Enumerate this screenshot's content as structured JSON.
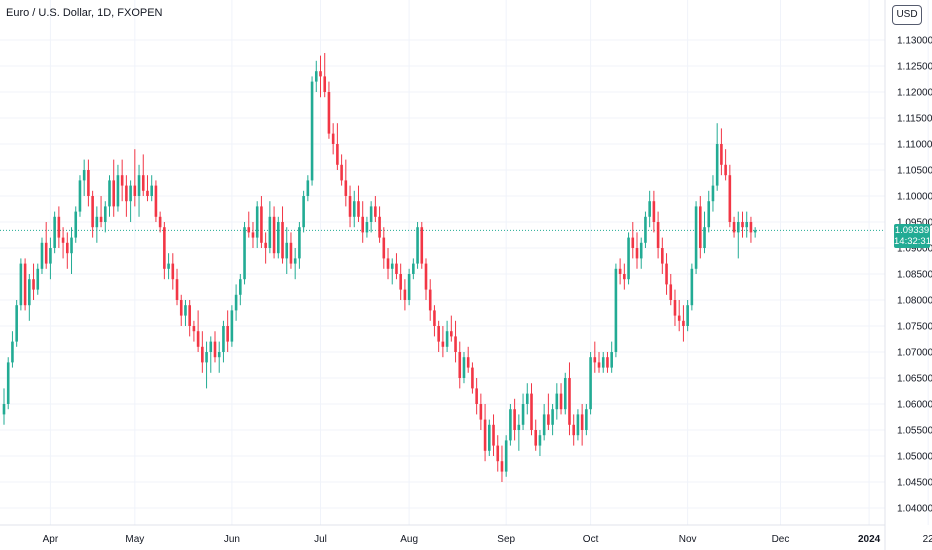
{
  "header": {
    "symbol_title": "Euro / U.S. Dollar, 1D, FXOPEN",
    "currency_button": "USD"
  },
  "price_tag": {
    "price": "1.09339",
    "countdown": "14:32:31"
  },
  "colors": {
    "up": "#22ab94",
    "down": "#f23645",
    "grid": "#f0f3fa",
    "last_price_line": "#22ab94"
  },
  "chart_data": {
    "type": "candlestick",
    "title": "Euro / U.S. Dollar, 1D, FXOPEN",
    "ylim": [
      1.037,
      1.134
    ],
    "y_ticks": [
      "1.04000",
      "1.04500",
      "1.05000",
      "1.05500",
      "1.06000",
      "1.06500",
      "1.07000",
      "1.07500",
      "1.08000",
      "1.08500",
      "1.09000",
      "1.09500",
      "1.10000",
      "1.10500",
      "1.11000",
      "1.11500",
      "1.12000",
      "1.12500",
      "1.13000"
    ],
    "x_ticks": [
      {
        "label": "Apr",
        "bar": 11
      },
      {
        "label": "May",
        "bar": 31
      },
      {
        "label": "Jun",
        "bar": 54
      },
      {
        "label": "Jul",
        "bar": 75
      },
      {
        "label": "Aug",
        "bar": 96
      },
      {
        "label": "Sep",
        "bar": 119
      },
      {
        "label": "Oct",
        "bar": 139
      },
      {
        "label": "Nov",
        "bar": 162
      },
      {
        "label": "Dec",
        "bar": 184
      },
      {
        "label": "2024",
        "bar": 205,
        "bold": true
      },
      {
        "label": "22",
        "bar": 219
      }
    ],
    "grid": true,
    "last_price": 1.09339,
    "candles": [
      [
        1.058,
        1.063,
        1.056,
        1.06
      ],
      [
        1.06,
        1.069,
        1.059,
        1.068
      ],
      [
        1.068,
        1.074,
        1.067,
        1.072
      ],
      [
        1.072,
        1.08,
        1.071,
        1.079
      ],
      [
        1.079,
        1.088,
        1.078,
        1.087
      ],
      [
        1.087,
        1.088,
        1.078,
        1.079
      ],
      [
        1.079,
        1.085,
        1.076,
        1.084
      ],
      [
        1.084,
        1.087,
        1.08,
        1.082
      ],
      [
        1.082,
        1.087,
        1.081,
        1.086
      ],
      [
        1.086,
        1.092,
        1.085,
        1.091
      ],
      [
        1.091,
        1.095,
        1.086,
        1.087
      ],
      [
        1.087,
        1.092,
        1.084,
        1.09
      ],
      [
        1.09,
        1.097,
        1.089,
        1.096
      ],
      [
        1.096,
        1.098,
        1.09,
        1.092
      ],
      [
        1.092,
        1.094,
        1.088,
        1.091
      ],
      [
        1.091,
        1.093,
        1.086,
        1.089
      ],
      [
        1.089,
        1.094,
        1.085,
        1.092
      ],
      [
        1.092,
        1.098,
        1.091,
        1.097
      ],
      [
        1.097,
        1.104,
        1.096,
        1.103
      ],
      [
        1.103,
        1.107,
        1.1,
        1.105
      ],
      [
        1.105,
        1.107,
        1.098,
        1.1
      ],
      [
        1.1,
        1.101,
        1.092,
        1.094
      ],
      [
        1.094,
        1.098,
        1.091,
        1.096
      ],
      [
        1.096,
        1.1,
        1.094,
        1.095
      ],
      [
        1.095,
        1.099,
        1.093,
        1.098
      ],
      [
        1.098,
        1.104,
        1.096,
        1.103
      ],
      [
        1.103,
        1.107,
        1.096,
        1.098
      ],
      [
        1.098,
        1.106,
        1.097,
        1.104
      ],
      [
        1.104,
        1.107,
        1.099,
        1.102
      ],
      [
        1.102,
        1.104,
        1.096,
        1.099
      ],
      [
        1.099,
        1.103,
        1.095,
        1.102
      ],
      [
        1.102,
        1.109,
        1.098,
        1.1
      ],
      [
        1.1,
        1.106,
        1.096,
        1.104
      ],
      [
        1.104,
        1.108,
        1.1,
        1.101
      ],
      [
        1.101,
        1.104,
        1.099,
        1.1
      ],
      [
        1.1,
        1.104,
        1.099,
        1.102
      ],
      [
        1.102,
        1.103,
        1.095,
        1.096
      ],
      [
        1.096,
        1.097,
        1.093,
        1.094
      ],
      [
        1.094,
        1.095,
        1.084,
        1.086
      ],
      [
        1.086,
        1.089,
        1.084,
        1.087
      ],
      [
        1.087,
        1.089,
        1.082,
        1.084
      ],
      [
        1.084,
        1.086,
        1.079,
        1.08
      ],
      [
        1.08,
        1.081,
        1.075,
        1.077
      ],
      [
        1.077,
        1.08,
        1.075,
        1.079
      ],
      [
        1.079,
        1.08,
        1.073,
        1.075
      ],
      [
        1.075,
        1.076,
        1.072,
        1.074
      ],
      [
        1.074,
        1.078,
        1.07,
        1.071
      ],
      [
        1.071,
        1.074,
        1.066,
        1.068
      ],
      [
        1.068,
        1.072,
        1.063,
        1.07
      ],
      [
        1.07,
        1.073,
        1.066,
        1.072
      ],
      [
        1.072,
        1.074,
        1.068,
        1.069
      ],
      [
        1.069,
        1.072,
        1.066,
        1.07
      ],
      [
        1.07,
        1.076,
        1.068,
        1.075
      ],
      [
        1.075,
        1.078,
        1.07,
        1.072
      ],
      [
        1.072,
        1.079,
        1.071,
        1.078
      ],
      [
        1.078,
        1.083,
        1.076,
        1.081
      ],
      [
        1.081,
        1.085,
        1.079,
        1.084
      ],
      [
        1.084,
        1.095,
        1.083,
        1.094
      ],
      [
        1.094,
        1.097,
        1.092,
        1.093
      ],
      [
        1.093,
        1.095,
        1.09,
        1.092
      ],
      [
        1.092,
        1.099,
        1.09,
        1.098
      ],
      [
        1.098,
        1.1,
        1.09,
        1.091
      ],
      [
        1.091,
        1.093,
        1.087,
        1.09
      ],
      [
        1.09,
        1.099,
        1.089,
        1.096
      ],
      [
        1.096,
        1.098,
        1.088,
        1.089
      ],
      [
        1.089,
        1.096,
        1.088,
        1.095
      ],
      [
        1.095,
        1.098,
        1.087,
        1.088
      ],
      [
        1.088,
        1.094,
        1.085,
        1.091
      ],
      [
        1.091,
        1.093,
        1.086,
        1.087
      ],
      [
        1.087,
        1.09,
        1.084,
        1.088
      ],
      [
        1.088,
        1.095,
        1.086,
        1.094
      ],
      [
        1.094,
        1.101,
        1.093,
        1.1
      ],
      [
        1.1,
        1.104,
        1.099,
        1.103
      ],
      [
        1.103,
        1.123,
        1.102,
        1.122
      ],
      [
        1.122,
        1.126,
        1.12,
        1.124
      ],
      [
        1.124,
        1.127,
        1.119,
        1.123
      ],
      [
        1.123,
        1.1275,
        1.119,
        1.12
      ],
      [
        1.12,
        1.122,
        1.111,
        1.112
      ],
      [
        1.112,
        1.114,
        1.108,
        1.11
      ],
      [
        1.11,
        1.114,
        1.105,
        1.106
      ],
      [
        1.106,
        1.108,
        1.102,
        1.103
      ],
      [
        1.103,
        1.107,
        1.098,
        1.1
      ],
      [
        1.1,
        1.102,
        1.094,
        1.096
      ],
      [
        1.096,
        1.101,
        1.094,
        1.099
      ],
      [
        1.099,
        1.102,
        1.095,
        1.096
      ],
      [
        1.096,
        1.099,
        1.091,
        1.093
      ],
      [
        1.093,
        1.096,
        1.092,
        1.095
      ],
      [
        1.095,
        1.099,
        1.093,
        1.098
      ],
      [
        1.098,
        1.1,
        1.095,
        1.096
      ],
      [
        1.096,
        1.098,
        1.091,
        1.092
      ],
      [
        1.092,
        1.094,
        1.086,
        1.088
      ],
      [
        1.088,
        1.09,
        1.084,
        1.086
      ],
      [
        1.086,
        1.088,
        1.083,
        1.087
      ],
      [
        1.087,
        1.089,
        1.084,
        1.085
      ],
      [
        1.085,
        1.087,
        1.08,
        1.082
      ],
      [
        1.082,
        1.084,
        1.078,
        1.08
      ],
      [
        1.08,
        1.086,
        1.079,
        1.085
      ],
      [
        1.085,
        1.088,
        1.084,
        1.087
      ],
      [
        1.087,
        1.095,
        1.086,
        1.094
      ],
      [
        1.094,
        1.095,
        1.086,
        1.087
      ],
      [
        1.087,
        1.088,
        1.08,
        1.082
      ],
      [
        1.082,
        1.084,
        1.076,
        1.078
      ],
      [
        1.078,
        1.079,
        1.073,
        1.075
      ],
      [
        1.075,
        1.076,
        1.07,
        1.072
      ],
      [
        1.072,
        1.075,
        1.069,
        1.071
      ],
      [
        1.071,
        1.076,
        1.07,
        1.074
      ],
      [
        1.074,
        1.077,
        1.072,
        1.073
      ],
      [
        1.073,
        1.076,
        1.068,
        1.07
      ],
      [
        1.07,
        1.072,
        1.063,
        1.065
      ],
      [
        1.065,
        1.07,
        1.064,
        1.069
      ],
      [
        1.069,
        1.071,
        1.066,
        1.067
      ],
      [
        1.067,
        1.068,
        1.062,
        1.063
      ],
      [
        1.063,
        1.065,
        1.058,
        1.06
      ],
      [
        1.06,
        1.062,
        1.055,
        1.057
      ],
      [
        1.057,
        1.06,
        1.049,
        1.051
      ],
      [
        1.051,
        1.057,
        1.05,
        1.056
      ],
      [
        1.056,
        1.058,
        1.05,
        1.052
      ],
      [
        1.052,
        1.054,
        1.047,
        1.049
      ],
      [
        1.049,
        1.052,
        1.045,
        1.047
      ],
      [
        1.047,
        1.054,
        1.046,
        1.053
      ],
      [
        1.053,
        1.06,
        1.052,
        1.059
      ],
      [
        1.059,
        1.061,
        1.053,
        1.055
      ],
      [
        1.055,
        1.058,
        1.051,
        1.056
      ],
      [
        1.056,
        1.062,
        1.055,
        1.06
      ],
      [
        1.06,
        1.064,
        1.058,
        1.062
      ],
      [
        1.062,
        1.064,
        1.054,
        1.055
      ],
      [
        1.055,
        1.057,
        1.051,
        1.052
      ],
      [
        1.052,
        1.055,
        1.05,
        1.054
      ],
      [
        1.054,
        1.06,
        1.053,
        1.058
      ],
      [
        1.058,
        1.062,
        1.055,
        1.056
      ],
      [
        1.056,
        1.06,
        1.054,
        1.059
      ],
      [
        1.059,
        1.064,
        1.057,
        1.062
      ],
      [
        1.062,
        1.064,
        1.058,
        1.059
      ],
      [
        1.059,
        1.066,
        1.058,
        1.065
      ],
      [
        1.065,
        1.068,
        1.054,
        1.056
      ],
      [
        1.056,
        1.058,
        1.052,
        1.054
      ],
      [
        1.054,
        1.059,
        1.053,
        1.058
      ],
      [
        1.058,
        1.06,
        1.052,
        1.055
      ],
      [
        1.055,
        1.06,
        1.054,
        1.059
      ],
      [
        1.059,
        1.07,
        1.058,
        1.069
      ],
      [
        1.069,
        1.072,
        1.066,
        1.068
      ],
      [
        1.068,
        1.07,
        1.066,
        1.067
      ],
      [
        1.067,
        1.07,
        1.066,
        1.069
      ],
      [
        1.069,
        1.07,
        1.066,
        1.067
      ],
      [
        1.067,
        1.072,
        1.066,
        1.07
      ],
      [
        1.07,
        1.087,
        1.069,
        1.086
      ],
      [
        1.086,
        1.088,
        1.083,
        1.085
      ],
      [
        1.085,
        1.087,
        1.082,
        1.084
      ],
      [
        1.084,
        1.093,
        1.083,
        1.092
      ],
      [
        1.092,
        1.095,
        1.088,
        1.09
      ],
      [
        1.09,
        1.093,
        1.086,
        1.088
      ],
      [
        1.088,
        1.092,
        1.086,
        1.091
      ],
      [
        1.091,
        1.097,
        1.09,
        1.096
      ],
      [
        1.096,
        1.101,
        1.094,
        1.099
      ],
      [
        1.099,
        1.101,
        1.093,
        1.095
      ],
      [
        1.095,
        1.097,
        1.088,
        1.09
      ],
      [
        1.09,
        1.092,
        1.085,
        1.087
      ],
      [
        1.087,
        1.089,
        1.081,
        1.083
      ],
      [
        1.083,
        1.085,
        1.079,
        1.08
      ],
      [
        1.08,
        1.082,
        1.075,
        1.077
      ],
      [
        1.077,
        1.08,
        1.074,
        1.076
      ],
      [
        1.076,
        1.079,
        1.072,
        1.075
      ],
      [
        1.075,
        1.08,
        1.074,
        1.079
      ],
      [
        1.079,
        1.087,
        1.078,
        1.086
      ],
      [
        1.086,
        1.099,
        1.085,
        1.098
      ],
      [
        1.098,
        1.1,
        1.088,
        1.09
      ],
      [
        1.09,
        1.097,
        1.089,
        1.094
      ],
      [
        1.094,
        1.101,
        1.093,
        1.099
      ],
      [
        1.099,
        1.104,
        1.097,
        1.102
      ],
      [
        1.102,
        1.114,
        1.101,
        1.11
      ],
      [
        1.11,
        1.113,
        1.104,
        1.106
      ],
      [
        1.106,
        1.109,
        1.103,
        1.104
      ],
      [
        1.104,
        1.106,
        1.094,
        1.095
      ],
      [
        1.095,
        1.096,
        1.092,
        1.093
      ],
      [
        1.093,
        1.097,
        1.088,
        1.095
      ],
      [
        1.095,
        1.097,
        1.092,
        1.094
      ],
      [
        1.094,
        1.097,
        1.092,
        1.095
      ],
      [
        1.095,
        1.096,
        1.091,
        1.093
      ],
      [
        1.093,
        1.094,
        1.092,
        1.0934
      ]
    ]
  }
}
